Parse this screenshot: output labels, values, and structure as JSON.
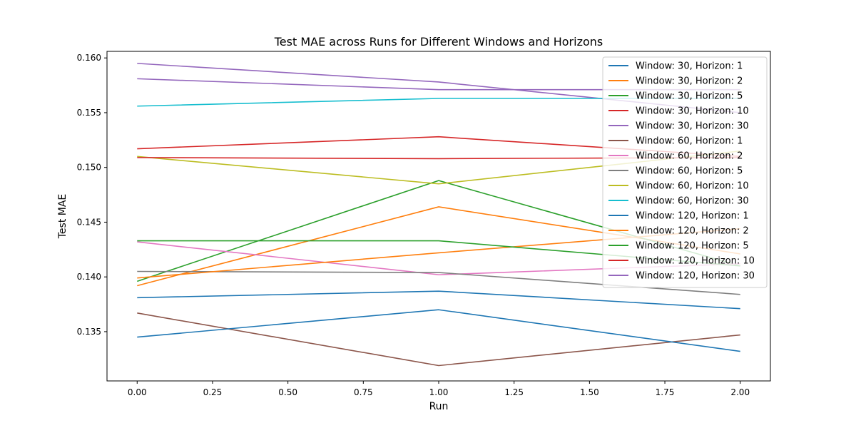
{
  "chart_data": {
    "type": "line",
    "title": "Test MAE across Runs for Different Windows and Horizons",
    "xlabel": "Run",
    "ylabel": "Test MAE",
    "xlim": [
      -0.1,
      2.1
    ],
    "ylim": [
      0.1305,
      0.1606
    ],
    "xticks": [
      0.0,
      0.25,
      0.5,
      0.75,
      1.0,
      1.25,
      1.5,
      1.75,
      2.0
    ],
    "xtick_labels": [
      "0.00",
      "0.25",
      "0.50",
      "0.75",
      "1.00",
      "1.25",
      "1.50",
      "1.75",
      "2.00"
    ],
    "yticks": [
      0.135,
      0.14,
      0.145,
      0.15,
      0.155,
      0.16
    ],
    "ytick_labels": [
      "0.135",
      "0.140",
      "0.145",
      "0.150",
      "0.155",
      "0.160"
    ],
    "grid": false,
    "legend_position": "top-right",
    "x": [
      0,
      1,
      2
    ],
    "series": [
      {
        "name": "Window: 30, Horizon: 1",
        "color": "#1f77b4",
        "values": [
          0.1381,
          0.1387,
          0.1371
        ]
      },
      {
        "name": "Window: 30, Horizon: 2",
        "color": "#ff7f0e",
        "values": [
          0.1392,
          0.1464,
          0.1421
        ]
      },
      {
        "name": "Window: 30, Horizon: 5",
        "color": "#2ca02c",
        "values": [
          0.1396,
          0.1488,
          0.141
        ]
      },
      {
        "name": "Window: 30, Horizon: 10",
        "color": "#d62728",
        "values": [
          0.1517,
          0.1528,
          0.151
        ]
      },
      {
        "name": "Window: 30, Horizon: 30",
        "color": "#9467bd",
        "values": [
          0.1595,
          0.1578,
          0.155
        ]
      },
      {
        "name": "Window: 60, Horizon: 1",
        "color": "#8c564b",
        "values": [
          0.1367,
          0.1319,
          0.1347
        ]
      },
      {
        "name": "Window: 60, Horizon: 2",
        "color": "#e377c2",
        "values": [
          0.1432,
          0.1402,
          0.1412
        ]
      },
      {
        "name": "Window: 60, Horizon: 5",
        "color": "#7f7f7f",
        "values": [
          0.1405,
          0.1404,
          0.1384
        ]
      },
      {
        "name": "Window: 60, Horizon: 10",
        "color": "#bcbd22",
        "values": [
          0.151,
          0.1485,
          0.1515
        ]
      },
      {
        "name": "Window: 60, Horizon: 30",
        "color": "#17becf",
        "values": [
          0.1556,
          0.1563,
          0.1563
        ]
      },
      {
        "name": "Window: 120, Horizon: 1",
        "color": "#1f77b4",
        "values": [
          0.1345,
          0.137,
          0.1332
        ]
      },
      {
        "name": "Window: 120, Horizon: 2",
        "color": "#ff7f0e",
        "values": [
          0.1399,
          0.1422,
          0.1444
        ]
      },
      {
        "name": "Window: 120, Horizon: 5",
        "color": "#2ca02c",
        "values": [
          0.1433,
          0.1433,
          0.141
        ]
      },
      {
        "name": "Window: 120, Horizon: 10",
        "color": "#d62728",
        "values": [
          0.1509,
          0.1508,
          0.1509
        ]
      },
      {
        "name": "Window: 120, Horizon: 30",
        "color": "#9467bd",
        "values": [
          0.1581,
          0.1571,
          0.1571
        ]
      }
    ]
  }
}
